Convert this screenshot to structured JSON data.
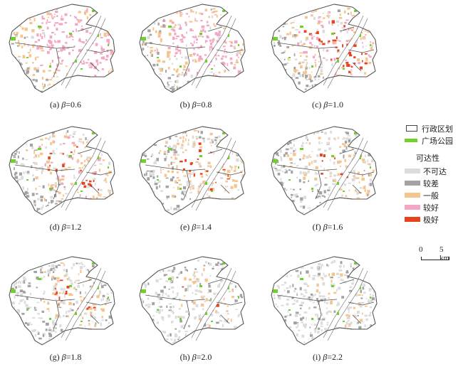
{
  "panels": [
    {
      "label": "(a) ",
      "var": "β",
      "value": "=0.6",
      "beta": 0.6
    },
    {
      "label": "(b) ",
      "var": "β",
      "value": "=0.8",
      "beta": 0.8
    },
    {
      "label": "(c) ",
      "var": "β",
      "value": "=1.0",
      "beta": 1.0
    },
    {
      "label": "(d) ",
      "var": "β",
      "value": "=1.2",
      "beta": 1.2
    },
    {
      "label": "(e) ",
      "var": "β",
      "value": "=1.4",
      "beta": 1.4
    },
    {
      "label": "(f) ",
      "var": "β",
      "value": "=1.6",
      "beta": 1.6
    },
    {
      "label": "(g) ",
      "var": "β",
      "value": "=1.8",
      "beta": 1.8
    },
    {
      "label": "(h) ",
      "var": "β",
      "value": "=2.0",
      "beta": 2.0
    },
    {
      "label": "(i) ",
      "var": "β",
      "value": "=2.2",
      "beta": 2.2
    }
  ],
  "legend": {
    "boundary_label": "行政区划",
    "park_label": "广场公园",
    "accessibility_title": "可达性",
    "classes": [
      {
        "label": "不可达",
        "color": "#dcdcdc"
      },
      {
        "label": "较差",
        "color": "#a3a3a3"
      },
      {
        "label": "一般",
        "color": "#f6c48f"
      },
      {
        "label": "较好",
        "color": "#f4a7c4"
      },
      {
        "label": "极好",
        "color": "#e8431f"
      }
    ],
    "park_color": "#6fd12a",
    "boundary_color": "#555555"
  },
  "scalebar": {
    "zero": "0",
    "five": "5 km"
  }
}
